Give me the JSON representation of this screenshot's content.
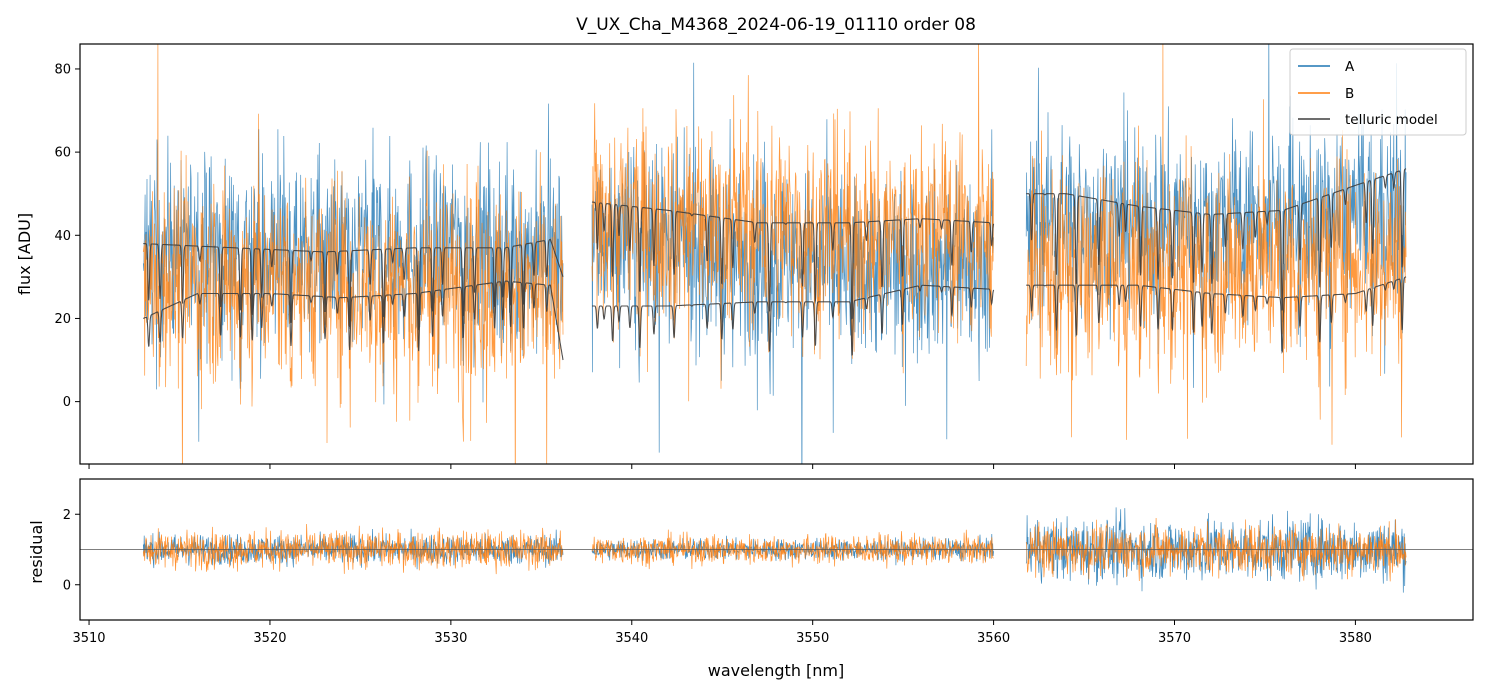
{
  "chart_data": [
    {
      "panel": "main",
      "type": "line",
      "title": "V_UX_Cha_M4368_2024-06-19_01110  order 08",
      "xlabel": "",
      "ylabel": "flux [ADU]",
      "xlim": [
        3509.5,
        3586.5
      ],
      "ylim": [
        -15,
        86
      ],
      "yticks": [
        0,
        20,
        40,
        60,
        80
      ],
      "grid": false,
      "legend_position": "top-right",
      "segments": [
        [
          3513.0,
          3536.2
        ],
        [
          3537.8,
          3560.0
        ],
        [
          3561.8,
          3582.8
        ]
      ],
      "series": [
        {
          "name": "A",
          "color": "#1f77b4",
          "x": [
            3513.0,
            3518.0,
            3523.0,
            3528.0,
            3533.0,
            3536.2,
            3537.8,
            3542.0,
            3546.0,
            3550.0,
            3554.0,
            3558.0,
            3560.0,
            3561.8,
            3566.0,
            3570.0,
            3574.0,
            3578.0,
            3582.8
          ],
          "continuum": [
            38,
            37,
            36,
            37,
            38,
            34,
            42,
            38,
            35,
            34,
            33,
            34,
            33,
            45,
            44,
            44,
            44,
            45,
            46
          ],
          "noise": 11
        },
        {
          "name": "B",
          "color": "#ff7f0e",
          "x": [
            3513.0,
            3518.0,
            3523.0,
            3528.0,
            3533.0,
            3536.2,
            3537.8,
            3542.0,
            3546.0,
            3550.0,
            3554.0,
            3558.0,
            3560.0,
            3561.8,
            3566.0,
            3570.0,
            3574.0,
            3578.0,
            3582.8
          ],
          "continuum": [
            30,
            30,
            29,
            28,
            29,
            24,
            46,
            44,
            43,
            42,
            41,
            42,
            38,
            33,
            31,
            32,
            33,
            34,
            35
          ],
          "noise": 12
        },
        {
          "name": "telluric model",
          "color": "#3d3d3d",
          "curves": [
            {
              "x": [
                3513.0,
                3518.0,
                3523.0,
                3528.0,
                3533.0,
                3535.5,
                3536.2,
                3537.8,
                3542.0,
                3547.0,
                3552.0,
                3556.0,
                3560.0,
                3561.8,
                3564.0,
                3568.0,
                3572.0,
                3576.0,
                3580.0,
                3582.8
              ],
              "y": [
                38,
                37,
                36,
                37,
                37,
                39,
                30,
                48,
                46,
                43,
                43,
                44,
                43,
                50,
                50,
                47,
                45,
                46,
                52,
                56
              ]
            },
            {
              "x": [
                3513.0,
                3516.0,
                3520.0,
                3524.0,
                3528.0,
                3533.0,
                3535.5,
                3536.2,
                3537.8,
                3542.0,
                3547.0,
                3552.0,
                3556.0,
                3560.0,
                3561.8,
                3564.0,
                3568.0,
                3572.0,
                3576.0,
                3580.0,
                3582.8
              ],
              "y": [
                20,
                26,
                26,
                25,
                26,
                29,
                28,
                10,
                23,
                23,
                24,
                24,
                28,
                27,
                28,
                28,
                28,
                26,
                25,
                26,
                30
              ]
            }
          ]
        }
      ]
    },
    {
      "panel": "residual",
      "type": "line",
      "xlabel": "wavelength [nm]",
      "ylabel": "residual",
      "xlim": [
        3509.5,
        3586.5
      ],
      "ylim": [
        -1.0,
        3.0
      ],
      "yticks": [
        0,
        2
      ],
      "xticks": [
        3510,
        3520,
        3530,
        3540,
        3550,
        3560,
        3570,
        3580
      ],
      "reference_line": 1,
      "series": [
        {
          "name": "A",
          "color": "#1f77b4",
          "center": 1,
          "noise_per_segment": [
            0.35,
            0.25,
            0.75
          ]
        },
        {
          "name": "B",
          "color": "#ff7f0e",
          "center": 1,
          "noise_per_segment": [
            0.45,
            0.35,
            0.6
          ]
        }
      ]
    }
  ],
  "legend": {
    "items": [
      {
        "label": "A",
        "color": "#1f77b4"
      },
      {
        "label": "B",
        "color": "#ff7f0e"
      },
      {
        "label": "telluric model",
        "color": "#3d3d3d"
      }
    ]
  }
}
